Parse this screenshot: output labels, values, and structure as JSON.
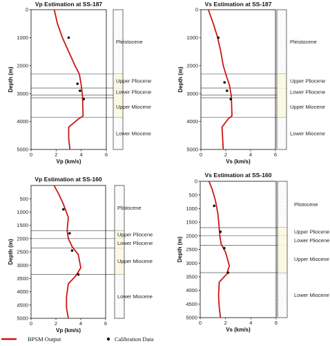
{
  "legend": {
    "line": "BPSM Output",
    "dots": "Calibration Data",
    "line_color": "#cc1414"
  },
  "chart_data": [
    {
      "type": "line",
      "title": "Vp Estimation at SS-187",
      "xlabel": "Vp (km/s)",
      "ylabel": "Depth (m)",
      "xlim": [
        0,
        6
      ],
      "ylim": [
        5000,
        0
      ],
      "xticks": [
        0,
        2,
        4,
        6
      ],
      "yticks": [
        0,
        1000,
        2000,
        3000,
        4000,
        5000
      ],
      "series": [
        {
          "x": [
            1.85,
            2.1,
            2.5,
            3.0,
            3.5,
            3.85,
            4.0,
            4.1,
            4.15,
            3.8,
            3.0,
            3.0,
            3.1
          ],
          "y": [
            0,
            500,
            1000,
            1500,
            2000,
            2300,
            2700,
            3100,
            3800,
            3900,
            4200,
            4600,
            5000
          ]
        }
      ],
      "calibration": [
        {
          "x": 3.0,
          "y": 1000
        },
        {
          "x": 3.7,
          "y": 2650
        },
        {
          "x": 3.9,
          "y": 2900
        },
        {
          "x": 4.2,
          "y": 3200
        }
      ],
      "horizons": [
        2300,
        2800,
        3050,
        3150,
        3850
      ],
      "formations": [
        {
          "label": "Pleistocene",
          "top": 0,
          "bottom": 2300
        },
        {
          "label": "Upper Pliocene",
          "top": 2300,
          "bottom": 2800
        },
        {
          "label": "Lower Pliocene",
          "top": 2800,
          "bottom": 3100
        },
        {
          "label": "Upper Miocene",
          "top": 3100,
          "bottom": 3850
        },
        {
          "label": "Lower Miocene",
          "top": 3850,
          "bottom": 5000
        }
      ]
    },
    {
      "type": "line",
      "title": "Vs Estimation at SS-187",
      "xlabel": "Vs (km/s)",
      "ylabel": "Depth (m)",
      "xlim": [
        0,
        6
      ],
      "ylim": [
        5000,
        0
      ],
      "xticks": [
        0,
        2,
        4,
        6
      ],
      "yticks": [
        0,
        1000,
        2000,
        3000,
        4000,
        5000
      ],
      "series": [
        {
          "x": [
            0.6,
            1.0,
            1.35,
            1.6,
            1.8,
            2.0,
            2.3,
            2.45,
            2.5,
            2.2,
            1.7,
            1.75,
            1.8
          ],
          "y": [
            0,
            500,
            1000,
            1500,
            2000,
            2300,
            2700,
            3100,
            3800,
            3900,
            4200,
            4600,
            5000
          ]
        }
      ],
      "calibration": [
        {
          "x": 1.4,
          "y": 1000
        },
        {
          "x": 1.9,
          "y": 2600
        },
        {
          "x": 2.1,
          "y": 2900
        },
        {
          "x": 2.4,
          "y": 3200
        }
      ],
      "horizons": [
        2300,
        2800,
        3050,
        3150,
        3850
      ],
      "formations": [
        {
          "label": "Pleistocene",
          "top": 0,
          "bottom": 2300
        },
        {
          "label": "Upper Pliocene",
          "top": 2300,
          "bottom": 2800
        },
        {
          "label": "Lower Pliocene",
          "top": 2800,
          "bottom": 3100
        },
        {
          "label": "Upper Miocene",
          "top": 3100,
          "bottom": 3850
        },
        {
          "label": "Lower Miocene",
          "top": 3850,
          "bottom": 5000
        }
      ]
    },
    {
      "type": "line",
      "title": "Vp Estimation at SS-160",
      "xlabel": "Vp (km/s)",
      "ylabel": "Depth (m)",
      "xlim": [
        0,
        6
      ],
      "ylim": [
        5000,
        0
      ],
      "xticks": [
        0,
        2,
        4,
        6
      ],
      "yticks": [
        500,
        1000,
        1500,
        2000,
        2500,
        3000,
        3500,
        4000,
        4500,
        5000
      ],
      "series": [
        {
          "x": [
            1.85,
            2.2,
            2.6,
            3.0,
            2.9,
            3.0,
            3.3,
            3.8,
            4.0,
            3.6,
            3.0,
            2.85,
            2.85,
            3.0
          ],
          "y": [
            0,
            300,
            700,
            1200,
            1700,
            2000,
            2300,
            2600,
            3100,
            3400,
            3700,
            4200,
            4600,
            5000
          ]
        }
      ],
      "calibration": [
        {
          "x": 2.6,
          "y": 900
        },
        {
          "x": 3.1,
          "y": 1800
        },
        {
          "x": 3.3,
          "y": 2450
        },
        {
          "x": 3.8,
          "y": 3350
        }
      ],
      "horizons": [
        1700,
        2000,
        2350,
        3350
      ],
      "formations": [
        {
          "label": "Plistocene",
          "top": 0,
          "bottom": 1700
        },
        {
          "label": "Upper Pliocene",
          "top": 1700,
          "bottom": 2000
        },
        {
          "label": "Lower Pliocene",
          "top": 2000,
          "bottom": 2350
        },
        {
          "label": "Upper Miocene",
          "top": 2350,
          "bottom": 3350
        },
        {
          "label": "Lower Miocene",
          "top": 3350,
          "bottom": 5000
        }
      ]
    },
    {
      "type": "line",
      "title": "Vs Estimation at SS-160",
      "xlabel": "Vs (km/s)",
      "ylabel": "Depth (m)",
      "xlim": [
        0,
        6
      ],
      "ylim": [
        5000,
        0
      ],
      "xticks": [
        0,
        2,
        4,
        6
      ],
      "yticks": [
        0,
        500,
        1000,
        1500,
        2000,
        2500,
        3000,
        3500,
        4000,
        4500,
        5000
      ],
      "series": [
        {
          "x": [
            0.7,
            0.95,
            1.2,
            1.4,
            1.5,
            1.55,
            1.65,
            2.0,
            2.3,
            2.1,
            1.5,
            1.45,
            1.5,
            1.6
          ],
          "y": [
            0,
            300,
            700,
            1200,
            1700,
            2000,
            2300,
            2600,
            3100,
            3400,
            3700,
            4200,
            4600,
            5000
          ]
        }
      ],
      "calibration": [
        {
          "x": 1.1,
          "y": 900
        },
        {
          "x": 1.6,
          "y": 1850
        },
        {
          "x": 1.9,
          "y": 2450
        },
        {
          "x": 2.2,
          "y": 3350
        }
      ],
      "horizons": [
        1700,
        2000,
        2350,
        3350
      ],
      "formations": [
        {
          "label": "Plistocene",
          "top": 0,
          "bottom": 1700
        },
        {
          "label": "Upper Pliocene",
          "top": 1700,
          "bottom": 2000
        },
        {
          "label": "Lower Pliocene",
          "top": 2000,
          "bottom": 2350
        },
        {
          "label": "Upper Miocene",
          "top": 2350,
          "bottom": 3350
        },
        {
          "label": "Lower Miocene",
          "top": 3350,
          "bottom": 5000
        }
      ]
    }
  ]
}
